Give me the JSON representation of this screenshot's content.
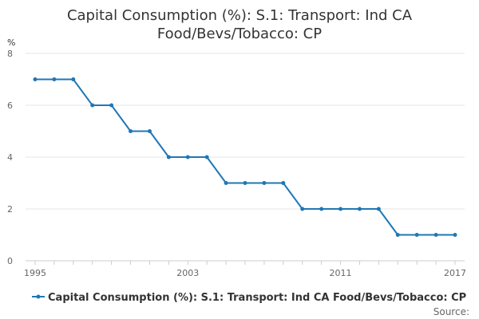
{
  "chart_data": {
    "type": "line",
    "title_lines": [
      "Capital Consumption (%): S.1: Transport: Ind CA",
      "Food/Bevs/Tobacco: CP"
    ],
    "ylabel": "%",
    "xlabel": "",
    "ylim": [
      0,
      8
    ],
    "yticks": [
      0,
      2,
      4,
      6,
      8
    ],
    "xlim": [
      1995,
      2017
    ],
    "xticks": [
      1995,
      2003,
      2011,
      2017
    ],
    "grid": true,
    "series": [
      {
        "name": "Capital Consumption (%): S.1: Transport: Ind CA Food/Bevs/Tobacco: CP",
        "color": "#1f77b4",
        "x": [
          1995,
          1996,
          1997,
          1998,
          1999,
          2000,
          2001,
          2002,
          2003,
          2004,
          2005,
          2006,
          2007,
          2008,
          2009,
          2010,
          2011,
          2012,
          2013,
          2014,
          2015,
          2016,
          2017
        ],
        "values": [
          7,
          7,
          7,
          6,
          6,
          5,
          5,
          4,
          4,
          4,
          3,
          3,
          3,
          3,
          2,
          2,
          2,
          2,
          2,
          1,
          1,
          1,
          1
        ]
      }
    ],
    "legend_position": "bottom",
    "source_label": "Source:"
  }
}
